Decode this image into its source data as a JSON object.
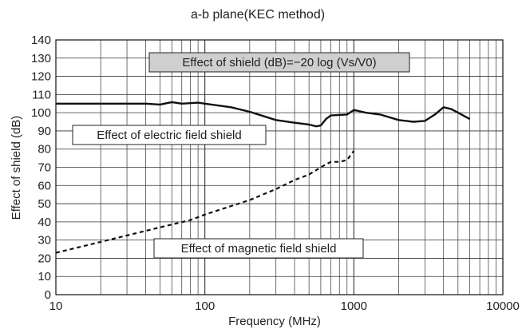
{
  "chart_data": {
    "type": "line",
    "title": "a-b plane(KEC method)",
    "xlabel": "Frequency (MHz)",
    "ylabel": "Effect of shield (dB)",
    "xscale": "log",
    "xlim": [
      10,
      10000
    ],
    "ylim": [
      0,
      140
    ],
    "grid": true,
    "x_ticks": [
      10,
      100,
      1000,
      10000
    ],
    "x_tick_labels": [
      "10",
      "100",
      "1000",
      "10000"
    ],
    "y_ticks": [
      0,
      10,
      20,
      30,
      40,
      50,
      60,
      70,
      80,
      90,
      100,
      110,
      120,
      130,
      140
    ],
    "y_tick_labels": [
      "0",
      "10",
      "20",
      "30",
      "40",
      "50",
      "60",
      "70",
      "80",
      "90",
      "100",
      "110",
      "120",
      "130",
      "140"
    ],
    "annotations": [
      {
        "text": "Effect of shield (dB)=−20 log (Vs/V0)",
        "boxed": true,
        "shaded": true
      },
      {
        "text": "Effect of electric field shield",
        "boxed": true,
        "shaded": false
      },
      {
        "text": "Effect of magnetic field shield",
        "boxed": true,
        "shaded": false
      }
    ],
    "series": [
      {
        "style": "solid",
        "color": "#111111",
        "x": [
          10,
          20,
          40,
          50,
          60,
          70,
          90,
          100,
          150,
          200,
          300,
          400,
          500,
          560,
          600,
          650,
          700,
          900,
          1000,
          1200,
          1500,
          2000,
          2500,
          3000,
          3500,
          4000,
          4500,
          5000,
          6000
        ],
        "y": [
          105,
          105,
          105,
          104.5,
          105.8,
          105,
          105.5,
          105,
          103,
          100.5,
          96,
          94.5,
          93.5,
          92.5,
          93,
          96.5,
          98.5,
          99,
          101.5,
          100,
          99,
          96,
          95,
          95.5,
          99,
          103,
          102,
          100,
          96.5
        ]
      },
      {
        "style": "dashed",
        "color": "#111111",
        "x": [
          10,
          20,
          50,
          80,
          100,
          200,
          300,
          400,
          500,
          600,
          700,
          800,
          900,
          1000
        ],
        "y": [
          23,
          29,
          37,
          41,
          44,
          52,
          58,
          63,
          66,
          70,
          73,
          73,
          74,
          79
        ]
      }
    ]
  }
}
